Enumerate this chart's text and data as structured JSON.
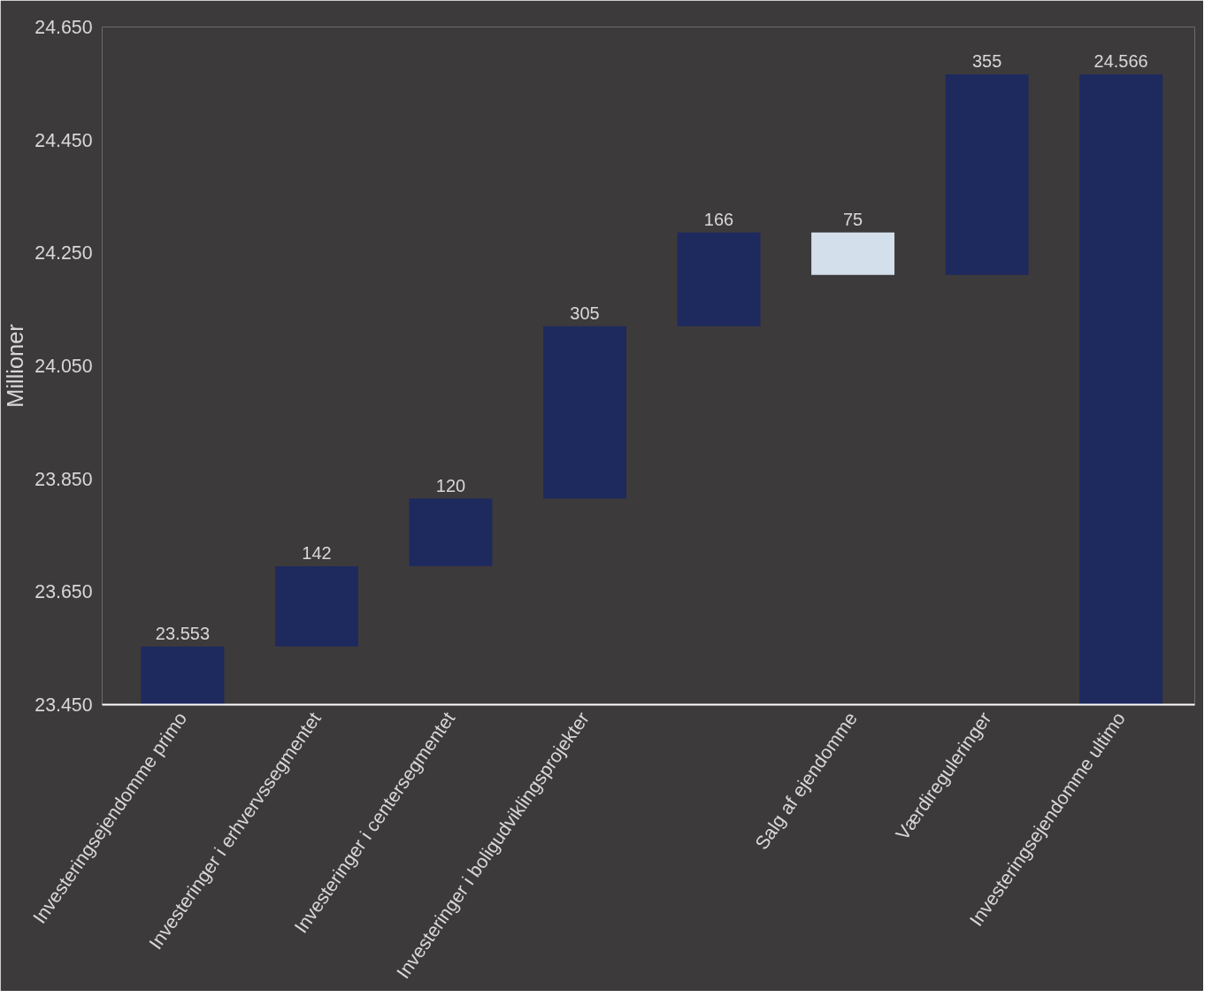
{
  "chart_data": {
    "type": "bar",
    "ylabel": "Millioner",
    "categories": [
      "Investeringsejendomme primo",
      "Investeringer i erhvervssegmentet",
      "Investeringer i centersegmentet",
      "Investeringer i boligudviklingsprojekter",
      null,
      "Salg af ejendomme",
      "Værdireguleringer",
      "Investeringsejendomme ultimo"
    ],
    "values": [
      23553,
      142,
      120,
      305,
      166,
      -75,
      355,
      24566
    ],
    "base": [
      null,
      23553,
      23695,
      23815,
      24120,
      24286,
      24211,
      null
    ],
    "value_labels": [
      "23.553",
      "142",
      "120",
      "305",
      "166",
      "75",
      "355",
      "24.566"
    ],
    "colors": [
      "#1e2a5e",
      "#1e2a5e",
      "#1e2a5e",
      "#1e2a5e",
      "#1e2a5e",
      "#d3dfeb",
      "#1e2a5e",
      "#1e2a5e"
    ],
    "ylim": [
      23450,
      24650
    ],
    "yticks": [
      {
        "value": 23450,
        "label": "23.450"
      },
      {
        "value": 23650,
        "label": "23.650"
      },
      {
        "value": 23850,
        "label": "23.850"
      },
      {
        "value": 24050,
        "label": "24.050"
      },
      {
        "value": 24250,
        "label": "24.250"
      },
      {
        "value": 24450,
        "label": "24.450"
      },
      {
        "value": 24650,
        "label": "24.650"
      }
    ],
    "grid": false
  }
}
